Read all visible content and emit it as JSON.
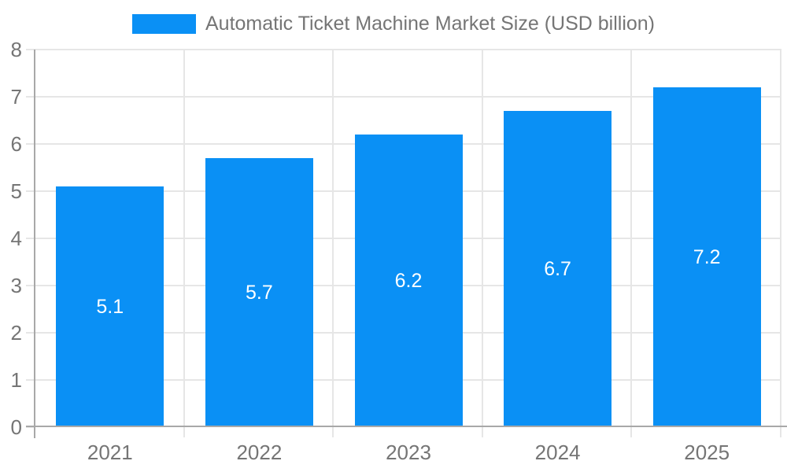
{
  "legend": {
    "label": "Automatic Ticket Machine Market Size (USD billion)",
    "swatch_color": "#0a90f5"
  },
  "chart_data": {
    "type": "bar",
    "title": "Automatic Ticket Machine Market Size (USD billion)",
    "categories": [
      "2021",
      "2022",
      "2023",
      "2024",
      "2025"
    ],
    "values": [
      5.1,
      5.7,
      6.2,
      6.7,
      7.2
    ],
    "value_labels": [
      "5.1",
      "5.7",
      "6.2",
      "6.7",
      "7.2"
    ],
    "series_name": "Automatic Ticket Machine Market Size (USD billion)",
    "xlabel": "",
    "ylabel": "",
    "ylim": [
      0,
      8
    ],
    "ytick_step": 1,
    "yticks": [
      "0",
      "1",
      "2",
      "3",
      "4",
      "5",
      "6",
      "7",
      "8"
    ],
    "grid": true,
    "legend_position": "top",
    "bar_color": "#0a90f5"
  },
  "colors": {
    "bar": "#0a90f5",
    "grid": "#e6e6e6",
    "axis": "#a8a8a8",
    "text": "#757575",
    "value_label": "#ffffff",
    "background": "#ffffff"
  }
}
